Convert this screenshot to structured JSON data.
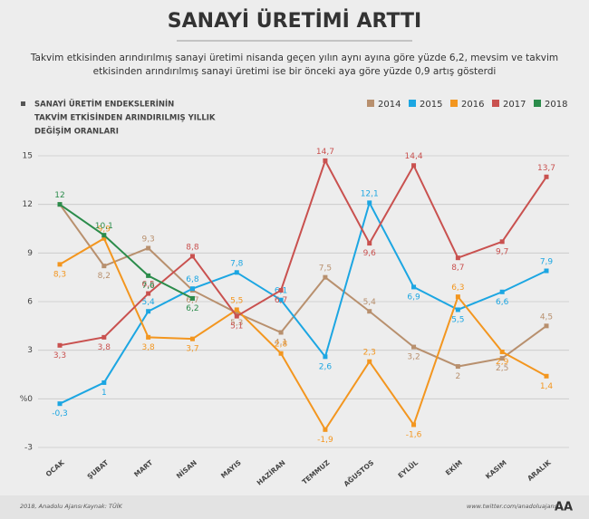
{
  "chart_data": {
    "type": "line",
    "title": "SANAYİ ÜRETİMİ ARTTI",
    "subtitle": [
      "Takvim etkisinden arındırılmış sanayi üretimi nisanda geçen yılın aynı ayına göre yüzde 6,2, mevsim ve takvim",
      "etkisinden arındırılmış sanayi üretimi ise bir önceki aya göre yüzde 0,9 artış gösterdi"
    ],
    "legend_title": [
      "SANAYİ ÜRETİM ENDEKSLERİNİN",
      "TAKVİM ETKİSİNDEN ARINDIRILMIŞ YILLIK",
      "DEĞİŞİM ORANLARI"
    ],
    "categories": [
      "OCAK",
      "ŞUBAT",
      "MART",
      "NİSAN",
      "MAYIS",
      "HAZİRAN",
      "TEMMUZ",
      "AĞUSTOS",
      "EYLÜL",
      "EKİM",
      "KASIM",
      "ARALIK"
    ],
    "series": [
      {
        "name": "2014",
        "color": "#b8906e",
        "values": [
          12,
          8.2,
          9.3,
          6.7,
          5.3,
          4.1,
          7.5,
          5.4,
          3.2,
          2,
          2.5,
          4.5
        ],
        "value_labels": [
          null,
          "8,2",
          "9,3",
          "6,7",
          "5,3",
          "4,1",
          "7,5",
          "5,4",
          "3,2",
          "2",
          "2,5",
          "4,5"
        ]
      },
      {
        "name": "2015",
        "color": "#1ca6e2",
        "values": [
          -0.3,
          1,
          5.4,
          6.8,
          7.8,
          6.1,
          2.6,
          12.1,
          6.9,
          5.5,
          6.6,
          7.9
        ],
        "value_labels": [
          "-0,3",
          "1",
          "5,4",
          "6,8",
          "7,8",
          "6,1",
          "2,6",
          "12,1",
          "6,9",
          "5,5",
          "6,6",
          "7,9"
        ]
      },
      {
        "name": "2016",
        "color": "#f3961f",
        "values": [
          8.3,
          9.9,
          3.8,
          3.7,
          5.5,
          2.8,
          -1.9,
          2.3,
          -1.6,
          6.3,
          2.9,
          1.4
        ],
        "value_labels": [
          "8,3",
          "9,9",
          "3,8",
          "3,7",
          "5,5",
          "2,8",
          "-1,9",
          "2,3",
          "-1,6",
          "6,3",
          "2,9",
          "1,4"
        ]
      },
      {
        "name": "2017",
        "color": "#c9514f",
        "values": [
          3.3,
          3.8,
          6.5,
          8.8,
          5.1,
          6.7,
          14.7,
          9.6,
          14.4,
          8.7,
          9.7,
          13.7
        ],
        "value_labels": [
          "3,3",
          "3,8",
          "6,5",
          "8,8",
          "5,1",
          "6,7",
          "14,7",
          "9,6",
          "14,4",
          "8,7",
          "9,7",
          "13,7"
        ]
      },
      {
        "name": "2018",
        "color": "#2b8c4b",
        "values": [
          12,
          10.1,
          7.6,
          6.2,
          null,
          null,
          null,
          null,
          null,
          null,
          null,
          null
        ],
        "value_labels": [
          "12",
          "10,1",
          "7,6",
          "6,2",
          null,
          null,
          null,
          null,
          null,
          null,
          null,
          null
        ]
      }
    ],
    "ylim": [
      -3,
      15
    ],
    "yticks": [
      -3,
      {
        "value": 0,
        "label": "%0"
      },
      3,
      6,
      9,
      12,
      15
    ],
    "grid": true,
    "footer": {
      "credit": "2018, Anadolu Ajansı",
      "source": "Kaynak: TÜİK",
      "twitter": "www.twitter.com/anadoluajansi",
      "logo": "AA"
    }
  }
}
